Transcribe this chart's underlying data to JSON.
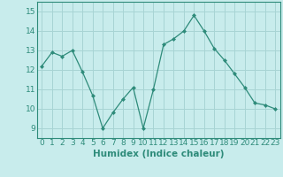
{
  "x": [
    0,
    1,
    2,
    3,
    4,
    5,
    6,
    7,
    8,
    9,
    10,
    11,
    12,
    13,
    14,
    15,
    16,
    17,
    18,
    19,
    20,
    21,
    22,
    23
  ],
  "y": [
    12.2,
    12.9,
    12.7,
    13.0,
    11.9,
    10.7,
    9.0,
    9.8,
    10.5,
    11.1,
    9.0,
    11.0,
    13.3,
    13.6,
    14.0,
    14.8,
    14.0,
    13.1,
    12.5,
    11.8,
    11.1,
    10.3,
    10.2,
    10.0
  ],
  "line_color": "#2e8b7a",
  "marker": "D",
  "marker_size": 2.0,
  "bg_color": "#c8ecec",
  "grid_color": "#a8d4d4",
  "xlabel": "Humidex (Indice chaleur)",
  "ylim": [
    8.5,
    15.5
  ],
  "xlim": [
    -0.5,
    23.5
  ],
  "yticks": [
    9,
    10,
    11,
    12,
    13,
    14,
    15
  ],
  "xticks": [
    0,
    1,
    2,
    3,
    4,
    5,
    6,
    7,
    8,
    9,
    10,
    11,
    12,
    13,
    14,
    15,
    16,
    17,
    18,
    19,
    20,
    21,
    22,
    23
  ],
  "tick_label_fontsize": 6.5,
  "xlabel_fontsize": 7.5,
  "line_width": 0.9,
  "spine_color": "#2e8b7a"
}
